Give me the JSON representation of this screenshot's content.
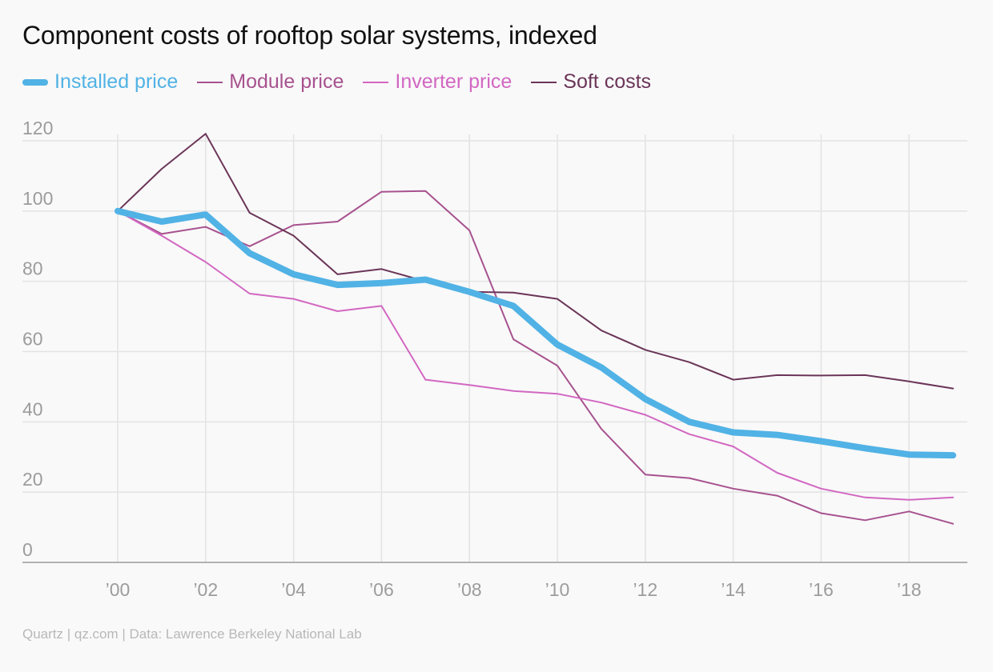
{
  "chart_data": {
    "type": "line",
    "title": "Component costs of rooftop solar systems, indexed",
    "source": "Quartz | qz.com | Data: Lawrence Berkeley National Lab",
    "x": [
      2000,
      2001,
      2002,
      2003,
      2004,
      2005,
      2006,
      2007,
      2008,
      2009,
      2010,
      2011,
      2012,
      2013,
      2014,
      2015,
      2016,
      2017,
      2018,
      2019
    ],
    "x_tick_values": [
      2000,
      2002,
      2004,
      2006,
      2008,
      2010,
      2012,
      2014,
      2016,
      2018
    ],
    "x_tick_labels": [
      "’00",
      "’02",
      "’04",
      "’06",
      "’08",
      "’10",
      "’12",
      "’14",
      "’16",
      "’18"
    ],
    "y_ticks": [
      0,
      20,
      40,
      60,
      80,
      100,
      120
    ],
    "y_tick_labels": [
      "0",
      "20",
      "40",
      "60",
      "80",
      "100",
      "120"
    ],
    "xlim": [
      1999,
      2019.3
    ],
    "ylim": [
      0,
      120
    ],
    "grid": true,
    "legend_position": "top-left",
    "series": [
      {
        "name": "Installed price",
        "color": "#51b2e5",
        "emphasis": true,
        "values": [
          100,
          97,
          99,
          88,
          82,
          79,
          79.5,
          80.5,
          77,
          73,
          62,
          55.5,
          46.5,
          40,
          37,
          36.3,
          34.5,
          32.5,
          30.7,
          30.5
        ]
      },
      {
        "name": "Module price",
        "color": "#a7528f",
        "values": [
          100,
          93.5,
          95.5,
          90,
          96,
          97,
          105.5,
          105.7,
          94.5,
          63.5,
          56,
          38,
          25,
          24,
          21,
          19,
          14,
          12,
          14.5,
          11
        ]
      },
      {
        "name": "Inverter price",
        "color": "#d267c2",
        "values": [
          100,
          93,
          85.5,
          76.5,
          75,
          71.5,
          73,
          52,
          50.5,
          48.8,
          48,
          45.5,
          42,
          36.5,
          33,
          25.5,
          21,
          18.5,
          17.8,
          18.5
        ]
      },
      {
        "name": "Soft costs",
        "color": "#6b3558",
        "values": [
          100,
          112,
          122,
          99.5,
          93,
          82,
          83.5,
          80,
          77,
          76.8,
          75,
          66,
          60.5,
          57,
          52,
          53.3,
          53.2,
          53.3,
          51.5,
          49.5
        ]
      }
    ]
  }
}
